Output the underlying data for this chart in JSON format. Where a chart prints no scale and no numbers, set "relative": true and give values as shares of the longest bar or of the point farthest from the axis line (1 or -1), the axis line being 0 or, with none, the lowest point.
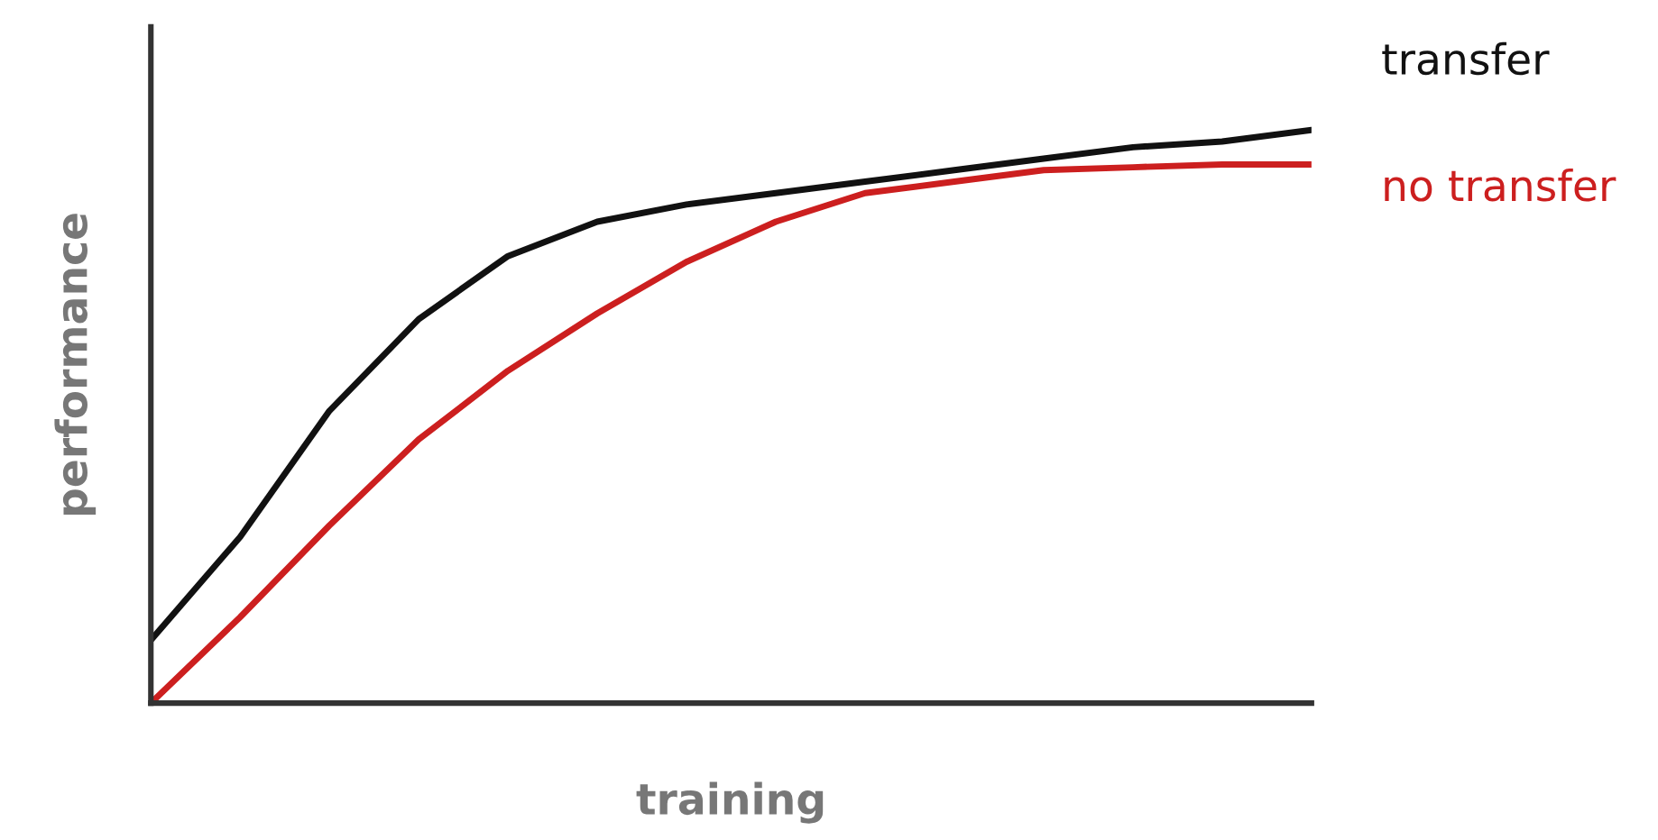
{
  "chart_data": {
    "type": "line",
    "relative": true,
    "xlabel": "training",
    "ylabel": "performance",
    "legend": false,
    "grid": false,
    "marker": "none",
    "line_style": "solid",
    "categories": [
      null,
      null,
      null,
      null,
      null,
      null,
      null,
      null,
      null,
      null,
      null,
      null,
      null,
      null
    ],
    "series": [
      {
        "name": "transfer",
        "color": "#111111",
        "values": [
          0.11,
          0.29,
          0.51,
          0.67,
          0.78,
          0.84,
          0.87,
          0.89,
          0.91,
          0.93,
          0.95,
          0.97,
          0.98,
          1.0
        ]
      },
      {
        "name": "no transfer",
        "color": "#cc1f1f",
        "values": [
          0,
          0.15,
          0.31,
          0.46,
          0.58,
          0.68,
          0.77,
          0.84,
          0.89,
          0.91,
          0.93,
          0.935,
          0.94,
          0.94
        ]
      }
    ]
  }
}
